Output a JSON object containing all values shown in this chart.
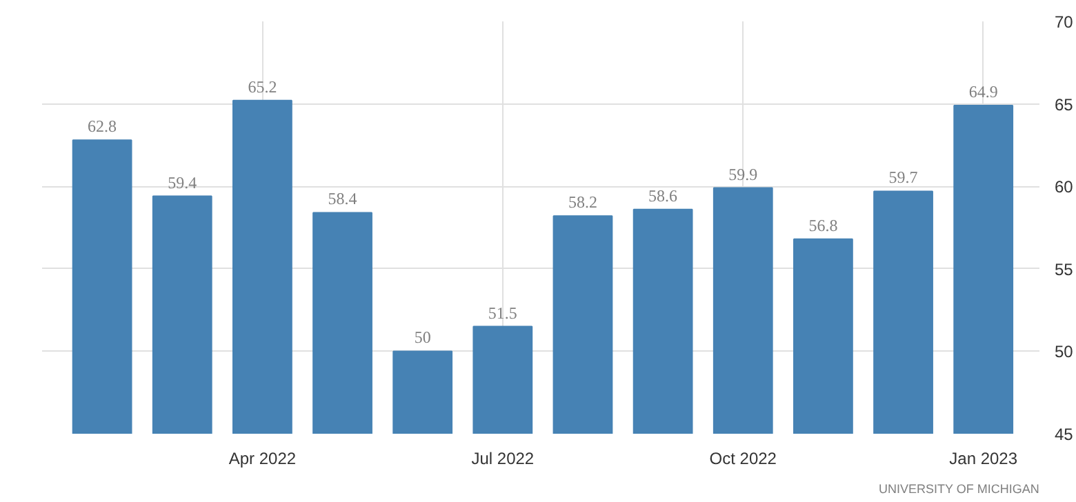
{
  "chart_data": {
    "type": "bar",
    "categories": [
      null,
      null,
      "Apr 2022",
      null,
      null,
      "Jul 2022",
      null,
      null,
      "Oct 2022",
      null,
      null,
      "Jan 2023"
    ],
    "values": [
      62.8,
      59.4,
      65.2,
      58.4,
      50,
      51.5,
      58.2,
      58.6,
      59.9,
      56.8,
      59.7,
      64.9
    ],
    "color": "#4682b4",
    "ylim": [
      45,
      70
    ],
    "yticks": [
      45,
      50,
      55,
      60,
      65,
      70
    ],
    "grid": true,
    "data_labels": true,
    "annotations": [
      "UNIVERSITY OF MICHIGAN"
    ]
  }
}
